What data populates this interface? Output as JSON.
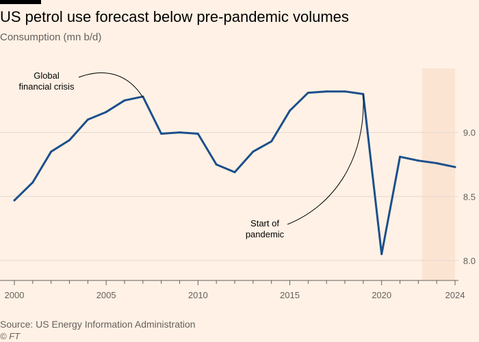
{
  "header": {
    "title": "US petrol use forecast below pre-pandemic volumes",
    "subtitle": "Consumption (mn b/d)"
  },
  "footer": {
    "source": "Source: US Energy Information Administration",
    "copyright": "© FT"
  },
  "colors": {
    "line": "#1B4F8C",
    "forecast_band": "#FCE4D3",
    "grid": "#E2D8CF",
    "axis": "#66605C"
  },
  "chart_data": {
    "type": "line",
    "title": "US petrol use forecast below pre-pandemic volumes",
    "subtitle": "Consumption (mn b/d)",
    "x": [
      2000,
      2001,
      2002,
      2003,
      2004,
      2005,
      2006,
      2007,
      2008,
      2009,
      2010,
      2011,
      2012,
      2013,
      2014,
      2015,
      2016,
      2017,
      2018,
      2019,
      2020,
      2021,
      2022,
      2023,
      2024
    ],
    "series": [
      {
        "values": [
          8.47,
          8.61,
          8.85,
          8.94,
          9.1,
          9.16,
          9.25,
          9.28,
          8.99,
          9.0,
          8.99,
          8.75,
          8.69,
          8.85,
          8.93,
          9.17,
          9.31,
          9.32,
          9.32,
          9.3,
          8.05,
          8.81,
          8.78,
          8.76,
          8.73
        ]
      }
    ],
    "xlim": [
      2000,
      2024
    ],
    "ylim": [
      7.85,
      9.5
    ],
    "x_ticks": [
      "2000",
      "2005",
      "2010",
      "2015",
      "2020",
      "2024"
    ],
    "y_ticks": [
      "8.0",
      "8.5",
      "9.0"
    ],
    "y_axis_side": "right",
    "grid": "horizontal",
    "forecast_band": {
      "from": 2022.2,
      "to": 2024
    },
    "annotations": [
      {
        "text_lines": [
          "Global",
          "financial crisis"
        ],
        "x": 2007,
        "y": 9.28
      },
      {
        "text_lines": [
          "Start of",
          "pandemic"
        ],
        "x": 2019,
        "y": 9.3
      }
    ]
  }
}
